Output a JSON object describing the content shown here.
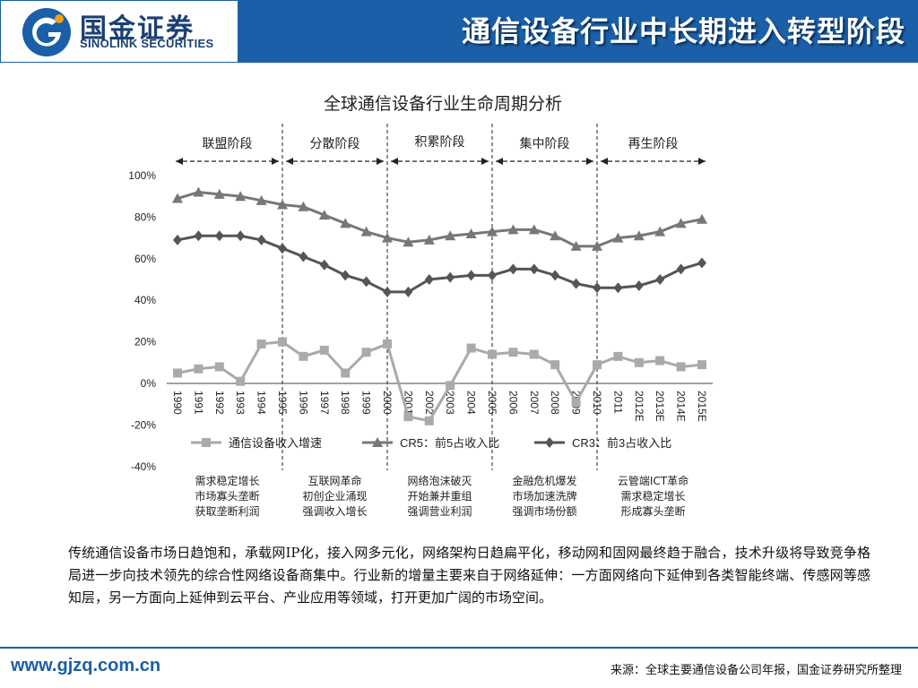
{
  "header": {
    "logo_cn": "国金证券",
    "logo_en": "SINOLINK SECURITIES",
    "title": "通信设备行业中长期进入转型阶段"
  },
  "colors": {
    "brand_blue": "#1a5fa8",
    "cr5_series": "#777777",
    "cr3_series": "#555555",
    "revenue_series": "#aaaaaa"
  },
  "chart_data": {
    "type": "line",
    "title": "全球通信设备行业生命周期分析",
    "categories": [
      "1990",
      "1991",
      "1992",
      "1993",
      "1994",
      "1995",
      "1996",
      "1997",
      "1998",
      "1999",
      "2000",
      "2001",
      "2002",
      "2003",
      "2004",
      "2005",
      "2006",
      "2007",
      "2008",
      "2009",
      "2010",
      "2011",
      "2012E",
      "2013E",
      "2014E",
      "2015E"
    ],
    "y_ticks": [
      "100%",
      "80%",
      "60%",
      "40%",
      "20%",
      "0%",
      "-20%",
      "-40%"
    ],
    "ylim": [
      -40,
      100
    ],
    "series": [
      {
        "name": "通信设备收入增速",
        "marker": "square",
        "values": [
          5,
          7,
          8,
          1,
          19,
          20,
          13,
          16,
          5,
          15,
          19,
          -16,
          -18,
          -1,
          17,
          14,
          15,
          14,
          9,
          -9,
          9,
          13,
          10,
          11,
          8,
          9
        ]
      },
      {
        "name": "CR5：前5占收入比",
        "marker": "triangle",
        "values": [
          89,
          92,
          91,
          90,
          88,
          86,
          85,
          81,
          77,
          73,
          70,
          68,
          69,
          71,
          72,
          73,
          74,
          74,
          71,
          66,
          66,
          70,
          71,
          73,
          77,
          79
        ]
      },
      {
        "name": "CR3：前3占收入比",
        "marker": "diamond",
        "values": [
          69,
          71,
          71,
          71,
          69,
          65,
          61,
          57,
          52,
          49,
          44,
          44,
          50,
          51,
          52,
          52,
          55,
          55,
          52,
          48,
          46,
          46,
          47,
          50,
          55,
          58
        ]
      }
    ],
    "phases": [
      "联盟阶段",
      "分散阶段",
      "积累阶段",
      "集中阶段",
      "再生阶段"
    ],
    "phase_notes": [
      [
        "需求稳定增长",
        "市场寡头垄断",
        "获取垄断利润"
      ],
      [
        "互联网革命",
        "初创企业涌现",
        "强调收入增长"
      ],
      [
        "网络泡沫破灭",
        "开始兼并重组",
        "强调营业利润"
      ],
      [
        "金融危机爆发",
        "市场加速洗牌",
        "强调市场份额"
      ],
      [
        "云管端ICT革命",
        "需求稳定增长",
        "形成寡头垄断"
      ]
    ],
    "grid": false,
    "legend_position": "inside-bottom"
  },
  "summary": "传统通信设备市场日趋饱和，承载网IP化，接入网多元化，网络架构日趋扁平化，移动网和固网最终趋于融合，技术升级将导致竞争格局进一步向技术领先的综合性网络设备商集中。行业新的增量主要来自于网络延伸：一方面网络向下延伸到各类智能终端、传感网等感知层，另一方面向上延伸到云平台、产业应用等领域，打开更加广阔的市场空间。",
  "footer": {
    "website": "www.gjzq.com.cn",
    "source": "来源：全球主要通信设备公司年报，国金证券研究所整理"
  }
}
